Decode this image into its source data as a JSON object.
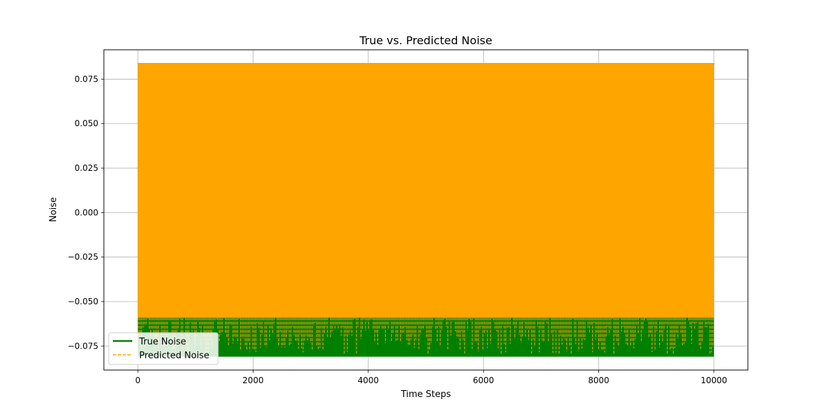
{
  "chart_data": {
    "type": "line",
    "title": "True vs. Predicted Noise",
    "xlabel": "Time Steps",
    "ylabel": "Noise",
    "xlim": [
      -590,
      10590
    ],
    "ylim": [
      -0.0885,
      0.0915
    ],
    "xticks": [
      {
        "value": 0,
        "label": "0"
      },
      {
        "value": 2000,
        "label": "2000"
      },
      {
        "value": 4000,
        "label": "4000"
      },
      {
        "value": 6000,
        "label": "6000"
      },
      {
        "value": 8000,
        "label": "8000"
      },
      {
        "value": 10000,
        "label": "10000"
      }
    ],
    "yticks": [
      {
        "value": -0.075,
        "label": "−0.075"
      },
      {
        "value": -0.05,
        "label": "−0.050"
      },
      {
        "value": -0.025,
        "label": "−0.025"
      },
      {
        "value": 0.0,
        "label": "0.000"
      },
      {
        "value": 0.025,
        "label": "0.025"
      },
      {
        "value": 0.05,
        "label": "0.050"
      },
      {
        "value": 0.075,
        "label": "0.075"
      }
    ],
    "grid": true,
    "legend_position": "lower-left",
    "series": [
      {
        "name": "True Noise",
        "color": "#008000",
        "style": "solid",
        "x_start": 0,
        "x_end": 10000,
        "y_min": -0.081,
        "y_max": 0.084
      },
      {
        "name": "Predicted Noise",
        "color": "#FFA500",
        "style": "dashed",
        "x_start": 0,
        "x_end": 10000,
        "y_min": -0.059,
        "y_max": 0.08
      }
    ]
  }
}
